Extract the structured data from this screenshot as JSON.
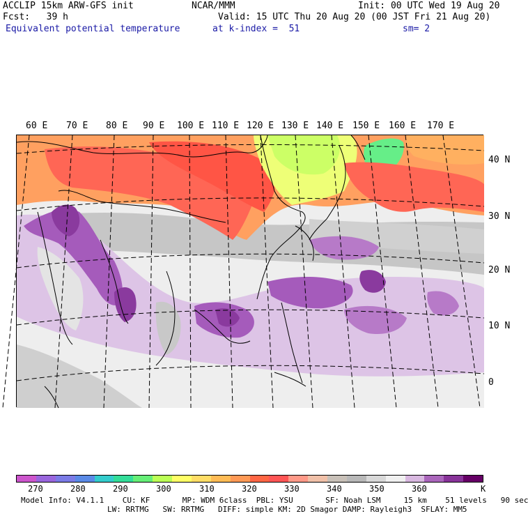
{
  "header": {
    "model": "ACCLIP 15km ARW-GFS init",
    "org": "NCAR/MMM",
    "init": "Init: 00 UTC Wed 19 Aug 20",
    "fcst": "Fcst:   39 h",
    "valid": "Valid: 15 UTC Thu 20 Aug 20 (00 JST Fri 21 Aug 20)",
    "field": "Equivalent potential temperature",
    "level": "at k-index =  51",
    "smooth": "sm= 2"
  },
  "lon_labels": [
    "60 E",
    "70 E",
    "80 E",
    "90 E",
    "100 E",
    "110 E",
    "120 E",
    "130 E",
    "140 E",
    "150 E",
    "160 E",
    "170 E"
  ],
  "lat_labels": [
    "40 N",
    "30 N",
    "20 N",
    "10 N",
    "0"
  ],
  "colorbar": {
    "colors": [
      "#cc55cc",
      "#9966dd",
      "#7b7be6",
      "#5a8ae6",
      "#33cccc",
      "#33dd99",
      "#66ee77",
      "#bbff55",
      "#ffff66",
      "#ffdd66",
      "#ffbb55",
      "#ff9955",
      "#ff6644",
      "#ff5555",
      "#ff9988",
      "#f0c0a8",
      "#c8c0b8",
      "#b8b8b8",
      "#d8d8d8",
      "#f0f0f0",
      "#d8b8e0",
      "#aa66bb",
      "#883399",
      "#660066"
    ],
    "labels": [
      "270",
      "280",
      "290",
      "300",
      "310",
      "320",
      "330",
      "340",
      "350",
      "360",
      "K"
    ]
  },
  "footer": {
    "line1": "Model Info: V4.1.1    CU: KF       MP: WDM 6class  PBL: YSU       SF: Noah LSM     15 km    51 levels   90 sec",
    "line2": "LW: RRTMG   SW: RRTMG   DIFF: simple KM: 2D Smagor DAMP: Rayleigh3  SFLAY: MM5"
  }
}
